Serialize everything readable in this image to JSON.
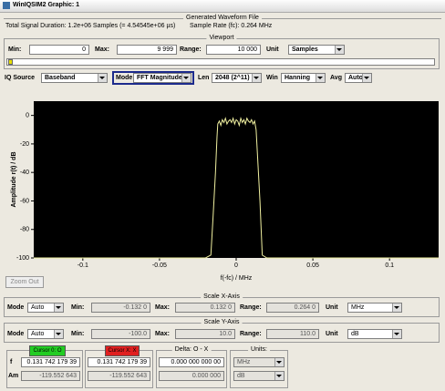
{
  "window": {
    "title": "WinIQSIM2 Graphic: 1"
  },
  "waveform": {
    "heading": "Generated Waveform File",
    "duration": "Total Signal Duration: 1.2e+06 Samples (= 4.54545e+06 µs)",
    "sample_rate": "Sample Rate (fc): 0.264 MHz"
  },
  "viewport": {
    "heading": "Viewport",
    "min_label": "Min:",
    "min": "0",
    "max_label": "Max:",
    "max": "9 999",
    "range_label": "Range:",
    "range": "10 000",
    "unit_label": "Unit",
    "unit": "Samples"
  },
  "settings": {
    "iq_source_label": "IQ Source",
    "iq_source": "Baseband",
    "mode_label": "Mode",
    "mode": "FFT Magnitude",
    "len_label": "Len",
    "len": "2048 (2^11)",
    "win_label": "Win",
    "win": "Hanning",
    "avg_label": "Avg",
    "avg": "Auto"
  },
  "chart_data": {
    "type": "line",
    "xlabel": "f(-fc) / MHz",
    "ylabel": "Amplitude r(t) / dB",
    "xlim": [
      -0.132,
      0.132
    ],
    "ylim": [
      -100,
      10
    ],
    "xticks": [
      -0.1,
      -0.05,
      0,
      0.05,
      0.1
    ],
    "yticks": [
      0,
      -20,
      -40,
      -60,
      -80,
      -100
    ],
    "x": [
      -0.132,
      -0.06,
      -0.02,
      -0.0165,
      -0.015,
      -0.0135,
      -0.0125,
      -0.012,
      -0.011,
      -0.01,
      -0.009,
      -0.008,
      -0.007,
      -0.006,
      -0.005,
      -0.004,
      -0.003,
      -0.002,
      -0.001,
      0,
      0.001,
      0.002,
      0.003,
      0.004,
      0.005,
      0.006,
      0.007,
      0.008,
      0.009,
      0.01,
      0.011,
      0.012,
      0.013,
      0.014,
      0.0155,
      0.017,
      0.02,
      0.06,
      0.132
    ],
    "series": [
      {
        "color": "#f0f0a0",
        "values": [
          -100,
          -100,
          -100,
          -98,
          -70,
          -40,
          -15,
          -6,
          -4,
          -7,
          -3,
          -5,
          -2,
          -6,
          -4,
          -3,
          -5,
          -2,
          -6,
          -3,
          -4,
          -7,
          -2,
          -5,
          -3,
          -6,
          -2,
          -4,
          -5,
          -3,
          -6,
          -4,
          -10,
          -30,
          -60,
          -98,
          -100,
          -100,
          -100
        ]
      }
    ]
  },
  "zoom_out": "Zoom Out",
  "scale_x": {
    "heading": "Scale X-Axis",
    "mode_label": "Mode",
    "mode": "Auto",
    "min_label": "Min:",
    "min": "-0.132 0",
    "max_label": "Max:",
    "max": "0.132 0",
    "range_label": "Range:",
    "range": "0.264 0",
    "unit_label": "Unit",
    "unit": "MHz"
  },
  "scale_y": {
    "heading": "Scale Y-Axis",
    "mode_label": "Mode",
    "mode": "Auto",
    "min_label": "Min:",
    "min": "-100.0",
    "max_label": "Max:",
    "max": "10.0",
    "range_label": "Range:",
    "range": "110.0",
    "unit_label": "Unit",
    "unit": "dB"
  },
  "cursors": {
    "cursor_o": "Cursor 0: O",
    "cursor_x": "Cursor X: X",
    "delta": "Delta: O - X",
    "units": "Units:",
    "f_label": "f",
    "am_label": "Am",
    "o_f": "0.131 742 179 39",
    "o_am": "-119.552 643",
    "x_f": "0.131 742 179 39",
    "x_am": "-119.552 643",
    "delta_f": "0.000 000 000 00",
    "delta_am": "0.000 000",
    "unit_f": "MHz",
    "unit_am": "dB"
  }
}
